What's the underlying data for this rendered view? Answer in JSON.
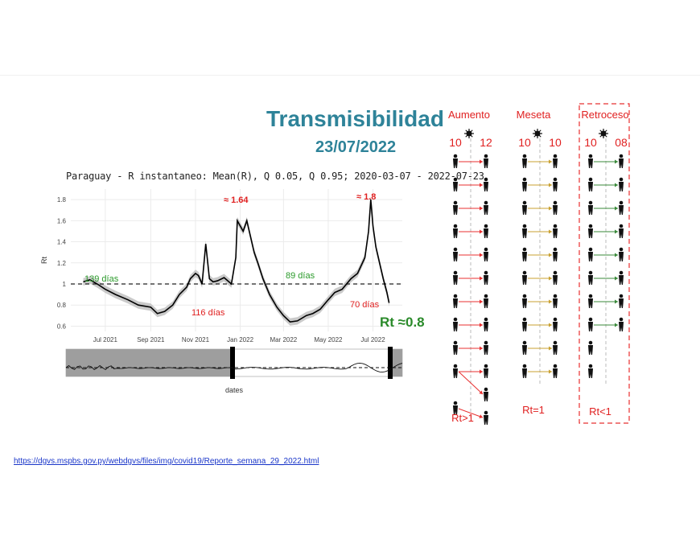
{
  "header": {
    "title": "Transmisibilidad",
    "date": "23/07/2022"
  },
  "source_link": "https://dgvs.mspbs.gov.py/webdgvs/files/img/covid19/Reporte_semana_29_2022.html",
  "chart_data": {
    "type": "line",
    "title": "Paraguay - R instantaneo: Mean(R), Q 0.05, Q 0.95; 2020-03-07 - 2022-07-23",
    "xlabel": "dates",
    "ylabel": "Rt",
    "x_ticks": [
      "Jul 2021",
      "Sep 2021",
      "Nov 2021",
      "Jan 2022",
      "Mar 2022",
      "May 2022",
      "Jul 2022"
    ],
    "y_ticks": [
      "0.6",
      "0.8",
      "1",
      "1.2",
      "1.4",
      "1.6",
      "1.8"
    ],
    "ylim": [
      0.55,
      1.9
    ],
    "reference_line": 1,
    "grid": true,
    "series": [
      {
        "x": [
          "2021-06-01",
          "2021-06-10",
          "2021-06-20",
          "2021-07-01",
          "2021-07-15",
          "2021-08-01",
          "2021-08-15",
          "2021-09-01",
          "2021-09-10",
          "2021-09-20",
          "2021-10-01",
          "2021-10-10",
          "2021-10-20",
          "2021-10-25",
          "2021-11-01",
          "2021-11-05",
          "2021-11-10",
          "2021-11-15",
          "2021-11-20",
          "2021-11-25",
          "2021-12-01",
          "2021-12-10",
          "2021-12-20",
          "2021-12-26",
          "2021-12-28",
          "2022-01-01",
          "2022-01-05",
          "2022-01-10",
          "2022-01-15",
          "2022-01-20",
          "2022-01-25",
          "2022-02-01",
          "2022-02-10",
          "2022-02-20",
          "2022-03-01",
          "2022-03-10",
          "2022-03-20",
          "2022-04-01",
          "2022-04-10",
          "2022-04-20",
          "2022-05-01",
          "2022-05-10",
          "2022-05-20",
          "2022-06-01",
          "2022-06-10",
          "2022-06-20",
          "2022-06-25",
          "2022-06-28",
          "2022-07-01",
          "2022-07-05",
          "2022-07-10",
          "2022-07-15",
          "2022-07-20",
          "2022-07-23"
        ],
        "y": [
          1.02,
          1.04,
          1.0,
          0.95,
          0.9,
          0.85,
          0.8,
          0.78,
          0.72,
          0.74,
          0.8,
          0.9,
          0.97,
          1.05,
          1.1,
          1.08,
          1.0,
          1.38,
          1.05,
          1.02,
          1.03,
          1.06,
          1.0,
          1.25,
          1.6,
          1.55,
          1.5,
          1.6,
          1.45,
          1.3,
          1.2,
          1.05,
          0.9,
          0.78,
          0.7,
          0.64,
          0.65,
          0.7,
          0.72,
          0.76,
          0.85,
          0.92,
          0.95,
          1.05,
          1.1,
          1.25,
          1.5,
          1.8,
          1.55,
          1.35,
          1.2,
          1.05,
          0.92,
          0.82
        ]
      }
    ],
    "annotations": [
      {
        "text": "139 días",
        "color": "#2a9a2a"
      },
      {
        "text": "116 días",
        "color": "#e02020"
      },
      {
        "text": "89 días",
        "color": "#2a9a2a"
      },
      {
        "text": "70 días",
        "color": "#e02020"
      },
      {
        "text": "≈ 1.64",
        "color": "#e02020"
      },
      {
        "text": "≈ 1.8",
        "color": "#e02020"
      },
      {
        "text": "Rt ≈0.8",
        "color": "#2a8a2a"
      }
    ],
    "overview_panel": true
  },
  "diagram": {
    "columns": [
      {
        "label": "Aumento",
        "before": "10",
        "after": "12",
        "caption": "Rt>1",
        "people_before": 10,
        "people_after": 12,
        "arrow_color": "#e83030",
        "dashed_box": false
      },
      {
        "label": "Meseta",
        "before": "10",
        "after": "10",
        "caption": "Rt=1",
        "people_before": 10,
        "people_after": 10,
        "arrow_color": "#c8a030",
        "dashed_box": false
      },
      {
        "label": "Retroceso",
        "before": "10",
        "after": "08",
        "caption": "Rt<1",
        "people_before": 10,
        "people_after": 8,
        "arrow_color": "#3a8a3a",
        "dashed_box": true,
        "box_color": "#e83030"
      }
    ]
  }
}
